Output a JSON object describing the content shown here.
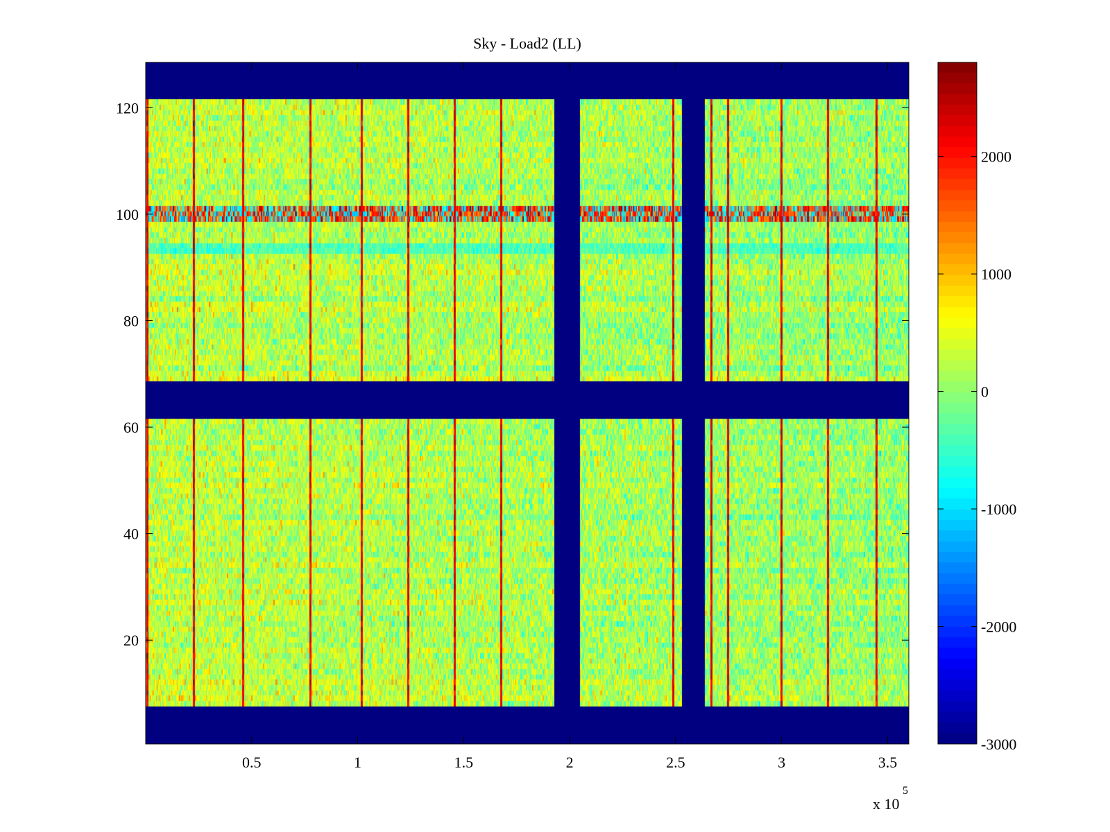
{
  "chart_data": {
    "type": "heatmap",
    "title": "Sky - Load2 (LL)",
    "xlabel": "",
    "ylabel": "",
    "x_multiplier_label": "x 10",
    "x_multiplier_exponent": "5",
    "xlim": [
      0,
      3.6
    ],
    "ylim": [
      0.5,
      128.5
    ],
    "x_ticks": [
      0.5,
      1,
      1.5,
      2,
      2.5,
      3,
      3.5
    ],
    "x_tick_labels": [
      "0.5",
      "1",
      "1.5",
      "2",
      "2.5",
      "3",
      "3.5"
    ],
    "y_ticks": [
      20,
      40,
      60,
      80,
      100,
      120
    ],
    "y_tick_labels": [
      "20",
      "40",
      "60",
      "80",
      "100",
      "120"
    ],
    "colormap": "jet",
    "clim": [
      -3000,
      2800
    ],
    "colorbar_ticks": [
      2000,
      1000,
      0,
      -1000,
      -2000,
      -3000
    ],
    "colorbar_tick_labels": [
      "2000",
      "1000",
      "0",
      "-1000",
      "-2000",
      "-3000"
    ],
    "masked_value": -3000,
    "masked_row_bands": [
      [
        0.5,
        7.5
      ],
      [
        61.5,
        68.5
      ],
      [
        121.5,
        128.5
      ]
    ],
    "masked_column_bands": [
      [
        1.93,
        2.05
      ],
      [
        2.53,
        2.64
      ]
    ],
    "hot_row_band": [
      98.5,
      101.5
    ],
    "hot_row_value": 1800,
    "cold_row_band": [
      92.5,
      94.5
    ],
    "vertical_spike_columns": [
      0.01,
      0.23,
      0.46,
      0.78,
      1.02,
      1.24,
      1.46,
      1.68,
      2.49,
      2.67,
      2.75,
      3.0,
      3.22,
      3.45
    ],
    "vertical_spike_value": 2200,
    "background_mean": 300,
    "background_spread": 500
  }
}
